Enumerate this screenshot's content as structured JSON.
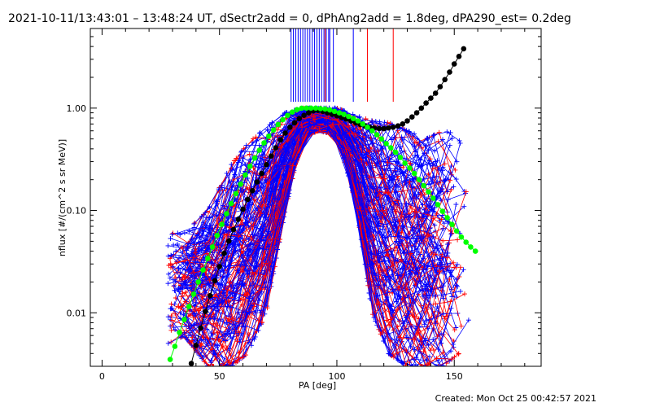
{
  "chart_data": {
    "type": "line",
    "title": "2021-10-11/13:43:01 – 13:48:24 UT, dSectr2add = 0, dPhAng2add = 1.8deg, dPA290_est=  0.2deg",
    "xlabel": "PA [deg]",
    "ylabel": "nflux [#/(cm^2 s sr MeV)]",
    "xlim": [
      -5,
      187
    ],
    "ylim": [
      0.003,
      6.0
    ],
    "yscale": "log",
    "xticks": [
      0,
      50,
      100,
      150
    ],
    "xtick_labels": [
      "0",
      "50",
      "100",
      "150"
    ],
    "yticks": [
      0.01,
      0.1,
      1.0
    ],
    "ytick_labels": [
      "0.01",
      "0.10",
      "1.00"
    ],
    "grid": false,
    "legend": "none",
    "footer": "Created: Mon Oct 25 00:42:57 2021",
    "colors": {
      "blue": "#0000ff",
      "red": "#ff0000",
      "green": "#00ff00",
      "black": "#000000"
    },
    "series": [
      {
        "color": "green",
        "marker": "circle",
        "x": [
          29,
          31,
          33,
          35,
          37,
          39,
          41,
          43,
          45,
          47,
          49,
          51,
          53,
          55,
          57,
          59,
          61,
          63,
          65,
          67,
          69,
          71,
          73,
          75,
          77,
          79,
          81,
          83,
          85,
          87,
          89,
          91,
          93,
          95,
          97,
          99,
          101,
          103,
          105,
          107,
          109,
          111,
          113,
          115,
          117,
          119,
          121,
          123,
          125,
          127,
          129,
          131,
          133,
          135,
          137,
          139,
          141,
          143,
          145,
          147,
          149,
          151,
          153,
          155,
          157,
          159
        ],
        "y": [
          0.0035,
          0.0047,
          0.0064,
          0.0086,
          0.0115,
          0.0152,
          0.02,
          0.0262,
          0.034,
          0.044,
          0.057,
          0.073,
          0.093,
          0.117,
          0.146,
          0.181,
          0.222,
          0.27,
          0.325,
          0.388,
          0.457,
          0.532,
          0.611,
          0.692,
          0.772,
          0.848,
          0.914,
          0.966,
          0.998,
          1.0,
          1.0,
          1.0,
          0.99,
          0.98,
          0.96,
          0.93,
          0.9,
          0.87,
          0.83,
          0.79,
          0.75,
          0.7,
          0.65,
          0.6,
          0.55,
          0.5,
          0.45,
          0.41,
          0.37,
          0.33,
          0.29,
          0.26,
          0.23,
          0.2,
          0.175,
          0.152,
          0.132,
          0.114,
          0.098,
          0.085,
          0.073,
          0.063,
          0.055,
          0.049,
          0.044,
          0.04
        ]
      },
      {
        "color": "black",
        "marker": "circle",
        "x": [
          38,
          40,
          42,
          44,
          46,
          48,
          50,
          52,
          54,
          56,
          58,
          60,
          62,
          64,
          66,
          68,
          70,
          72,
          74,
          76,
          78,
          80,
          82,
          84,
          86,
          88,
          90,
          92,
          94,
          96,
          98,
          100,
          102,
          104,
          106,
          108,
          110,
          112,
          114,
          116,
          118,
          120,
          122,
          124,
          126,
          128,
          130,
          132,
          134,
          136,
          138,
          140,
          142,
          144,
          146,
          148,
          150,
          152,
          154
        ],
        "y": [
          0.0032,
          0.0048,
          0.0071,
          0.0103,
          0.0147,
          0.0206,
          0.0283,
          0.0381,
          0.0502,
          0.065,
          0.082,
          0.103,
          0.128,
          0.156,
          0.19,
          0.23,
          0.28,
          0.34,
          0.41,
          0.49,
          0.57,
          0.65,
          0.72,
          0.79,
          0.85,
          0.9,
          0.94,
          0.95,
          0.93,
          0.9,
          0.87,
          0.84,
          0.81,
          0.78,
          0.75,
          0.72,
          0.69,
          0.67,
          0.65,
          0.64,
          0.63,
          0.63,
          0.64,
          0.65,
          0.67,
          0.7,
          0.75,
          0.82,
          0.9,
          1.0,
          1.12,
          1.25,
          1.4,
          1.62,
          1.9,
          2.25,
          2.7,
          3.2,
          3.8
        ]
      }
    ],
    "data_spikes": [
      {
        "color": "blue",
        "x": [
          80.5,
          81.5,
          82.5,
          83.5,
          84.5,
          85.5,
          86.5,
          87.5,
          88.5,
          89.5,
          90.5,
          91.5,
          92.5,
          93.5,
          94.5,
          95.5,
          96.5,
          97,
          98.5,
          107
        ]
      },
      {
        "color": "red",
        "x": [
          95,
          113,
          124
        ]
      }
    ],
    "measured_curves": {
      "colors": [
        "blue",
        "red"
      ],
      "marker": "plus",
      "envelope": {
        "x": [
          28,
          35,
          45,
          55,
          62,
          70,
          78,
          85,
          92,
          100,
          108,
          115,
          122,
          130,
          138,
          145,
          152,
          157
        ],
        "y_high": [
          0.06,
          0.06,
          0.1,
          0.28,
          0.45,
          0.65,
          0.9,
          1.0,
          1.0,
          1.0,
          0.85,
          0.75,
          0.72,
          0.6,
          0.5,
          0.6,
          0.55,
          0.35
        ],
        "y_low": [
          0.005,
          0.006,
          0.003,
          0.003,
          0.004,
          0.01,
          0.1,
          0.5,
          0.6,
          0.55,
          0.12,
          0.01,
          0.004,
          0.003,
          0.003,
          0.003,
          0.004,
          0.005
        ]
      }
    }
  }
}
